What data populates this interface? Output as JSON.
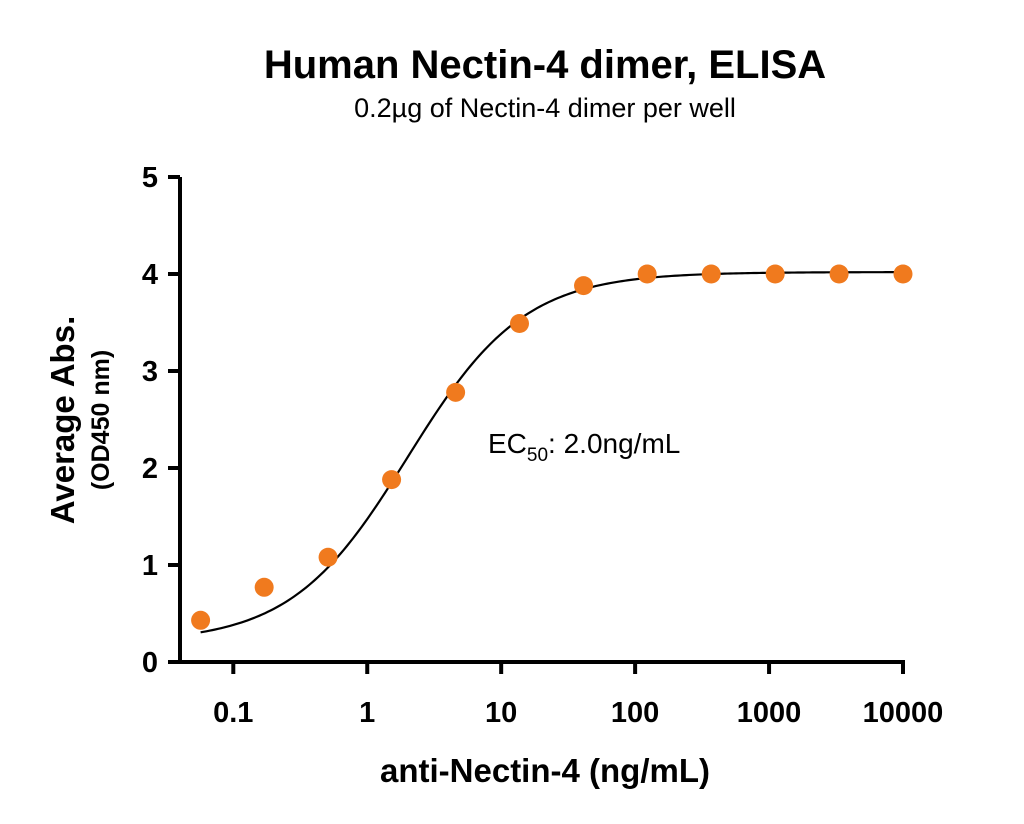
{
  "chart_data": {
    "type": "scatter",
    "title": "Human Nectin-4 dimer, ELISA",
    "subtitle": "0.2µg of Nectin-4 dimer per well",
    "xlabel": "anti-Nectin-4 (ng/mL)",
    "ylabel": "Average Abs.",
    "ylabel_unit": "(OD450 nm)",
    "x_scale": "log",
    "xlim": [
      0.04,
      10000
    ],
    "ylim": [
      0,
      5
    ],
    "x_ticks": [
      0.1,
      1,
      10,
      100,
      1000,
      10000
    ],
    "x_tick_labels": [
      "0.1",
      "1",
      "10",
      "100",
      "1000",
      "10000"
    ],
    "y_ticks": [
      0,
      1,
      2,
      3,
      4,
      5
    ],
    "y_tick_labels": [
      "0",
      "1",
      "2",
      "3",
      "4",
      "5"
    ],
    "grid": false,
    "marker_color": "#F07A1E",
    "curve_color": "#000000",
    "points": {
      "x": [
        0.057,
        0.17,
        0.51,
        1.52,
        4.57,
        13.7,
        41.2,
        123,
        370,
        1111,
        3333,
        10000
      ],
      "y": [
        0.43,
        0.77,
        1.08,
        1.88,
        2.78,
        3.49,
        3.88,
        4.0,
        4.0,
        4.0,
        4.0,
        4.0
      ]
    },
    "fit": {
      "model": "4PL",
      "bottom": 0.2,
      "top": 4.02,
      "ec50": 2.0,
      "hill": 1.0
    },
    "annotation": {
      "prefix": "EC",
      "subscript": "50",
      "suffix": ": 2.0ng/mL"
    }
  }
}
